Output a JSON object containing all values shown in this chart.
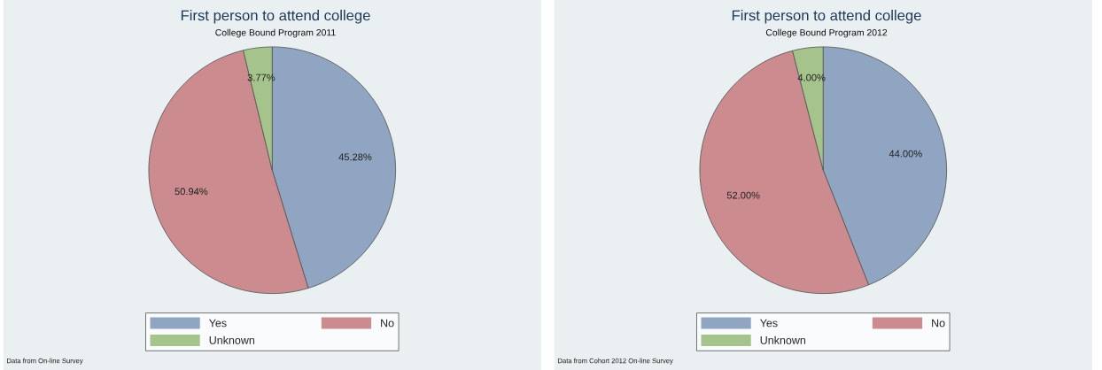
{
  "chart_data": [
    {
      "type": "pie",
      "title": "First person to attend college",
      "subtitle": "College Bound Program 2011",
      "categories": [
        "Yes",
        "No",
        "Unknown"
      ],
      "values": [
        45.28,
        50.94,
        3.77
      ],
      "value_labels": [
        "45.28%",
        "50.94%",
        "3.77%"
      ],
      "colors": [
        "#8fa5c1",
        "#cc8b8e",
        "#a4c48c"
      ],
      "legend": "bottom",
      "annotations": [
        "Data from On-line Survey"
      ]
    },
    {
      "type": "pie",
      "title": "First person to attend college",
      "subtitle": "College Bound Program 2012",
      "categories": [
        "Yes",
        "No",
        "Unknown"
      ],
      "values": [
        44.0,
        52.0,
        4.0
      ],
      "value_labels": [
        "44.00%",
        "52.00%",
        "4.00%"
      ],
      "colors": [
        "#8fa5c1",
        "#cc8b8e",
        "#a4c48c"
      ],
      "legend": "bottom",
      "annotations": [
        "Data from Cohort 2012 On-line Survey"
      ]
    }
  ]
}
